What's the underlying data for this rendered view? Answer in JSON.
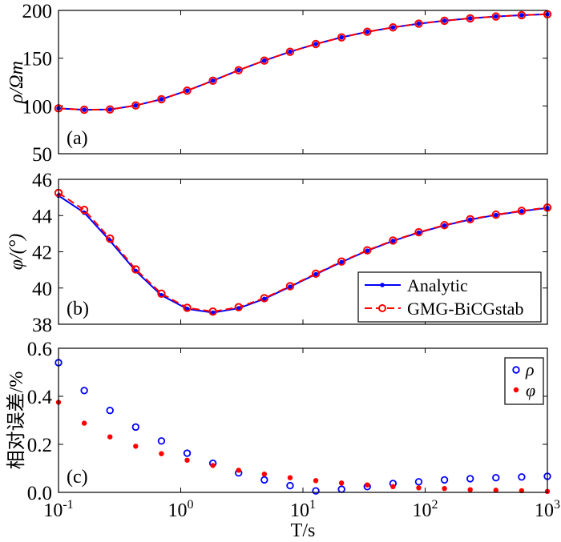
{
  "chart_data": [
    {
      "type": "line",
      "panel_label": "(a)",
      "ylabel": "ρ/Ωm",
      "xscale": "log",
      "xlim": [
        0.1,
        1000
      ],
      "ylim": [
        50,
        200
      ],
      "yticks": [
        "50",
        "100",
        "150",
        "200"
      ],
      "x": [
        0.1,
        0.1624,
        0.2637,
        0.4281,
        0.6952,
        1.1288,
        1.833,
        2.9764,
        4.8329,
        7.8476,
        12.743,
        20.691,
        33.598,
        54.556,
        88.587,
        143.84,
        233.57,
        379.27,
        615.85,
        1000
      ],
      "series": [
        {
          "name": "Analytic",
          "color": "#0000ff",
          "values": [
            97.5,
            96,
            96.3,
            100.5,
            107,
            116,
            126.4,
            137.4,
            147.5,
            156.7,
            164.8,
            171.8,
            177.6,
            182.2,
            186.1,
            189.2,
            191.7,
            193.6,
            195,
            196
          ]
        },
        {
          "name": "GMG-BiCGstab",
          "color": "#ff0000",
          "values": [
            97.5,
            96,
            96.3,
            100.5,
            107,
            116,
            126.4,
            137.4,
            147.5,
            156.7,
            164.8,
            171.8,
            177.6,
            182.2,
            186.1,
            189.2,
            191.7,
            193.6,
            195,
            196
          ]
        }
      ],
      "grid": false
    },
    {
      "type": "line",
      "panel_label": "(b)",
      "ylabel": "φ/(°)",
      "xscale": "log",
      "xlim": [
        0.1,
        1000
      ],
      "ylim": [
        38,
        46
      ],
      "yticks": [
        "38",
        "40",
        "42",
        "44",
        "46"
      ],
      "x": [
        0.1,
        0.1624,
        0.2637,
        0.4281,
        0.6952,
        1.1288,
        1.833,
        2.9764,
        4.8329,
        7.8476,
        12.743,
        20.691,
        33.598,
        54.556,
        88.587,
        143.84,
        233.57,
        379.27,
        615.85,
        1000
      ],
      "series": [
        {
          "name": "Analytic",
          "color": "#0000ff",
          "values": [
            45.1,
            44.16,
            42.61,
            40.94,
            39.6,
            38.85,
            38.64,
            38.88,
            39.4,
            40.07,
            40.76,
            41.43,
            42.06,
            42.6,
            43.06,
            43.45,
            43.78,
            44.03,
            44.24,
            44.42
          ]
        },
        {
          "name": "GMG-BiCGstab",
          "color": "#ff0000",
          "values": [
            45.25,
            44.31,
            42.73,
            41.03,
            39.69,
            38.91,
            38.7,
            38.94,
            39.44,
            40.1,
            40.79,
            41.46,
            42.08,
            42.62,
            43.08,
            43.47,
            43.8,
            44.05,
            44.26,
            44.44
          ]
        }
      ],
      "legend": "bottom-right",
      "grid": false
    },
    {
      "type": "scatter",
      "panel_label": "(c)",
      "ylabel": "相对误差/%",
      "xlabel": "T/s",
      "xscale": "log",
      "xlim": [
        0.1,
        1000
      ],
      "ylim": [
        0,
        0.6
      ],
      "yticks": [
        "0.0",
        "0.2",
        "0.4",
        "0.6"
      ],
      "xticks": [
        {
          "base": "10",
          "exp": "-1"
        },
        {
          "base": "10",
          "exp": "0"
        },
        {
          "base": "10",
          "exp": "1"
        },
        {
          "base": "10",
          "exp": "2"
        },
        {
          "base": "10",
          "exp": "3"
        }
      ],
      "x": [
        0.1,
        0.1624,
        0.2637,
        0.4281,
        0.6952,
        1.1288,
        1.833,
        2.9764,
        4.8329,
        7.8476,
        12.743,
        20.691,
        33.598,
        54.556,
        88.587,
        143.84,
        233.57,
        379.27,
        615.85,
        1000
      ],
      "series": [
        {
          "name": "ρ",
          "color": "#0000ff",
          "marker": "open-circle",
          "values": [
            0.54,
            0.424,
            0.341,
            0.272,
            0.214,
            0.163,
            0.121,
            0.081,
            0.052,
            0.028,
            0.006,
            0.013,
            0.024,
            0.037,
            0.044,
            0.052,
            0.057,
            0.061,
            0.064,
            0.067
          ]
        },
        {
          "name": "φ",
          "color": "#ff0000",
          "marker": "filled-dot",
          "values": [
            0.375,
            0.288,
            0.231,
            0.192,
            0.161,
            0.134,
            0.112,
            0.092,
            0.076,
            0.061,
            0.049,
            0.039,
            0.031,
            0.024,
            0.019,
            0.016,
            0.011,
            0.009,
            0.007,
            0.004
          ]
        }
      ],
      "legend": "top-right",
      "grid": false
    }
  ]
}
